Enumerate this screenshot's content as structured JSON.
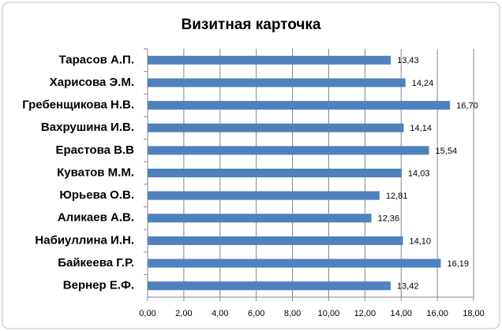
{
  "chart_data": {
    "type": "hbar",
    "title": "Визитная карточка",
    "categories": [
      "Тарасов А.П.",
      "Харисова Э.М.",
      "Гребенщикова Н.В.",
      "Вахрушина И.В.",
      "Ерастова В.В",
      "Куватов М.М.",
      "Юрьева О.В.",
      "Аликаев А.В.",
      "Набиуллина И.Н.",
      "Байкеева Г.Р.",
      "Вернер Е.Ф."
    ],
    "values": [
      13.43,
      14.24,
      16.7,
      14.14,
      15.54,
      14.03,
      12.81,
      12.36,
      14.1,
      16.19,
      13.42
    ],
    "value_labels": [
      "13,43",
      "14,24",
      "16,70",
      "14,14",
      "15,54",
      "14,03",
      "12,81",
      "12,36",
      "14,10",
      "16,19",
      "13,42"
    ],
    "color": "#4f81bd",
    "xlim": [
      0,
      18
    ],
    "xticks": [
      {
        "value": 0,
        "label": "0,00"
      },
      {
        "value": 2,
        "label": "2,00"
      },
      {
        "value": 4,
        "label": "4,00"
      },
      {
        "value": 6,
        "label": "6,00"
      },
      {
        "value": 8,
        "label": "8,00"
      },
      {
        "value": 10,
        "label": "10,00"
      },
      {
        "value": 12,
        "label": "12,00"
      },
      {
        "value": 14,
        "label": "14,00"
      },
      {
        "value": 16,
        "label": "16,00"
      },
      {
        "value": 18,
        "label": "18,00"
      }
    ],
    "grid": true
  }
}
